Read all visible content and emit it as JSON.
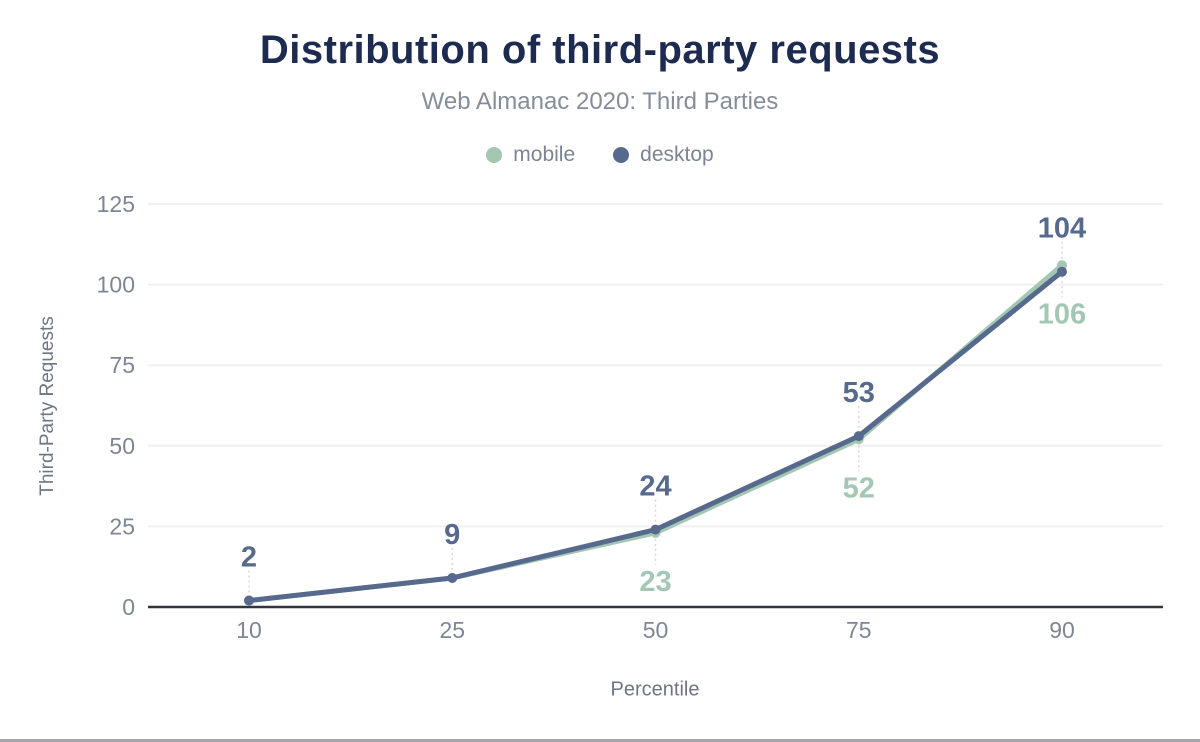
{
  "page": {
    "background": "#ffffff",
    "bottom_border_color": "#a3a7ab"
  },
  "header": {
    "title": "Distribution of third-party requests",
    "subtitle": "Web Almanac 2020: Third Parties",
    "title_color": "#1d2b50",
    "subtitle_color": "#848e99"
  },
  "axes": {
    "y_title": "Third-Party Requests",
    "x_title": "Percentile",
    "tick_label_color": "#7d8694",
    "axis_title_color": "#6d7683",
    "baseline_color": "#32363c",
    "gridline_color": "#f0f0f0",
    "leader_line_color": "#d8d8d8"
  },
  "chart_data": {
    "type": "line",
    "title": "Distribution of third-party requests",
    "subtitle": "Web Almanac 2020: Third Parties",
    "categories": [
      "10",
      "25",
      "50",
      "75",
      "90"
    ],
    "xlabel": "Percentile",
    "ylabel": "Third-Party Requests",
    "ylim": [
      0,
      125
    ],
    "yticks": [
      0,
      25,
      50,
      75,
      100,
      125
    ],
    "grid": "horizontal",
    "legend_position": "top",
    "series": [
      {
        "name": "mobile",
        "color": "#a3c7b2",
        "values": [
          2,
          9,
          23,
          52,
          106
        ],
        "point_labels": [
          "",
          "",
          "23",
          "52",
          "106"
        ],
        "label_side": "below"
      },
      {
        "name": "desktop",
        "color": "#57698c",
        "values": [
          2,
          9,
          24,
          53,
          104
        ],
        "point_labels": [
          "2",
          "9",
          "24",
          "53",
          "104"
        ],
        "label_side": "above"
      }
    ]
  }
}
